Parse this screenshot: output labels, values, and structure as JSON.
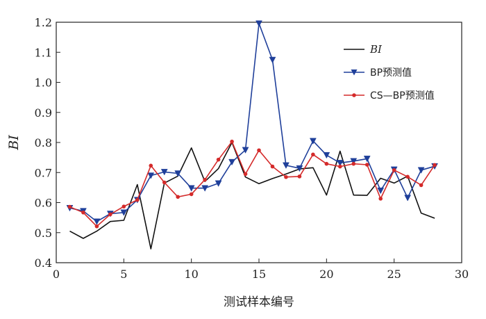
{
  "chart_data": {
    "type": "line",
    "title": "",
    "xlabel": "测试样本编号",
    "ylabel": "BI",
    "xlim": [
      0,
      30
    ],
    "ylim": [
      0.4,
      1.2
    ],
    "x_ticks": [
      0,
      5,
      10,
      15,
      20,
      25,
      30
    ],
    "y_ticks": [
      0.4,
      0.5,
      0.6,
      0.7,
      0.8,
      0.9,
      1.0,
      1.1,
      1.2
    ],
    "x_tick_labels": [
      "0",
      "5",
      "10",
      "15",
      "20",
      "25",
      "30"
    ],
    "y_tick_labels": [
      "0.4",
      "0.5",
      "0.6",
      "0.7",
      "0.8",
      "0.9",
      "1.0",
      "1.1",
      "1.2"
    ],
    "grid": false,
    "legend_position": "top-right",
    "x": [
      1,
      2,
      3,
      4,
      5,
      6,
      7,
      8,
      9,
      10,
      11,
      12,
      13,
      14,
      15,
      16,
      17,
      18,
      19,
      20,
      21,
      22,
      23,
      24,
      25,
      26,
      27,
      28
    ],
    "series": [
      {
        "name": "BI",
        "color": "#111111",
        "marker": "none",
        "values": [
          0.505,
          0.481,
          0.505,
          0.537,
          0.541,
          0.66,
          0.446,
          0.665,
          0.688,
          0.782,
          0.67,
          0.713,
          0.8,
          0.685,
          0.663,
          0.68,
          0.695,
          0.712,
          0.716,
          0.625,
          0.771,
          0.625,
          0.624,
          0.681,
          0.665,
          0.688,
          0.565,
          0.548
        ]
      },
      {
        "name": "BP预测值",
        "color": "#1f3f9a",
        "marker": "triangle-down",
        "values": [
          0.582,
          0.572,
          0.537,
          0.563,
          0.567,
          0.609,
          0.69,
          0.702,
          0.697,
          0.648,
          0.648,
          0.664,
          0.735,
          0.775,
          1.196,
          1.075,
          0.724,
          0.714,
          0.805,
          0.758,
          0.732,
          0.738,
          0.746,
          0.64,
          0.71,
          0.616,
          0.708,
          0.721
        ]
      },
      {
        "name": "CS—BP预测值",
        "color": "#d42a2a",
        "marker": "circle",
        "values": [
          0.586,
          0.567,
          0.521,
          0.561,
          0.587,
          0.609,
          0.723,
          0.667,
          0.619,
          0.628,
          0.676,
          0.743,
          0.803,
          0.695,
          0.774,
          0.72,
          0.685,
          0.687,
          0.76,
          0.729,
          0.72,
          0.729,
          0.726,
          0.613,
          0.708,
          0.686,
          0.658,
          0.725
        ]
      }
    ]
  }
}
